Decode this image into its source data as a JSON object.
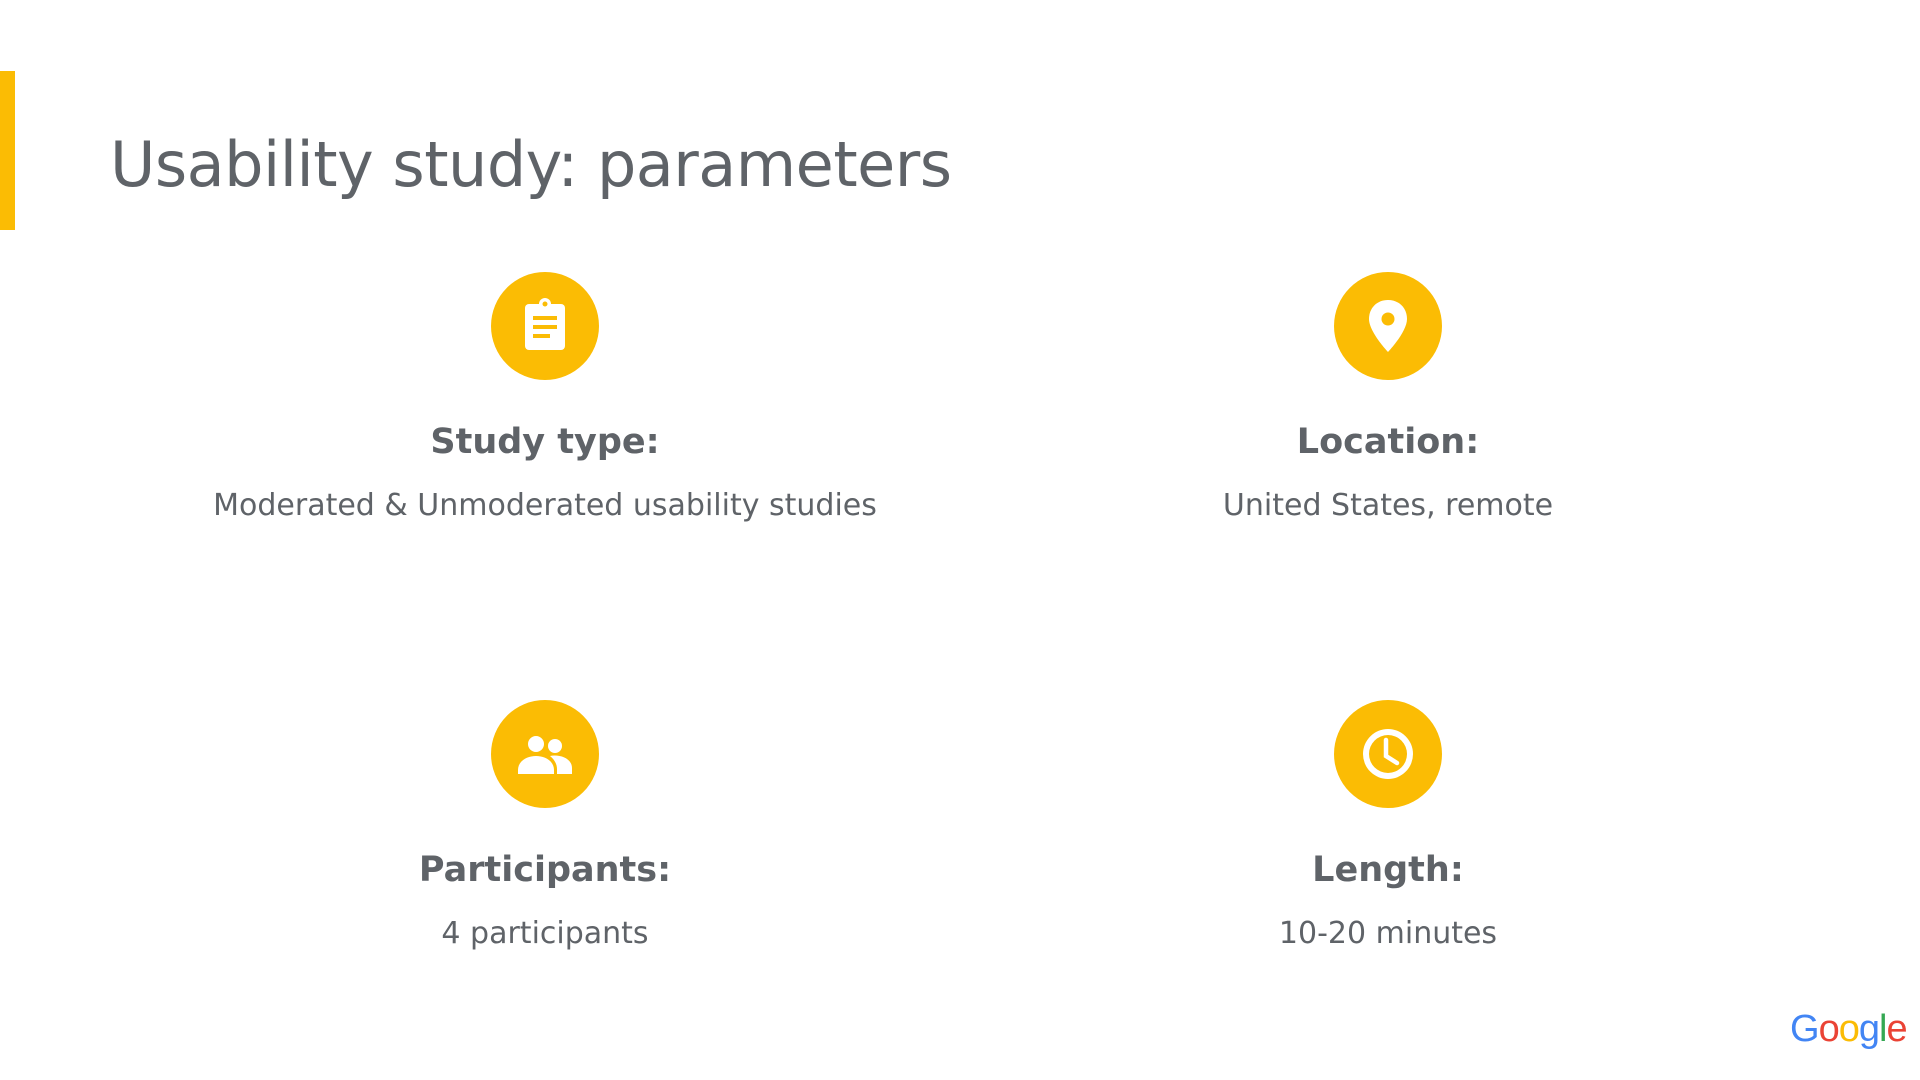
{
  "title": "Usability study: parameters",
  "accent_color": "#fbbc04",
  "items": [
    {
      "icon": "clipboard-icon",
      "heading": "Study type:",
      "description": "Moderated & Unmoderated usability studies"
    },
    {
      "icon": "location-pin-icon",
      "heading": "Location:",
      "description": "United States, remote"
    },
    {
      "icon": "people-icon",
      "heading": "Participants:",
      "description": "4 participants"
    },
    {
      "icon": "clock-icon",
      "heading": "Length:",
      "description": "10-20 minutes"
    }
  ],
  "logo": {
    "text": "Google",
    "letters": [
      "G",
      "o",
      "o",
      "g",
      "l",
      "e"
    ],
    "colors": [
      "#4285f4",
      "#ea4335",
      "#fbbc04",
      "#4285f4",
      "#34a853",
      "#ea4335"
    ]
  }
}
